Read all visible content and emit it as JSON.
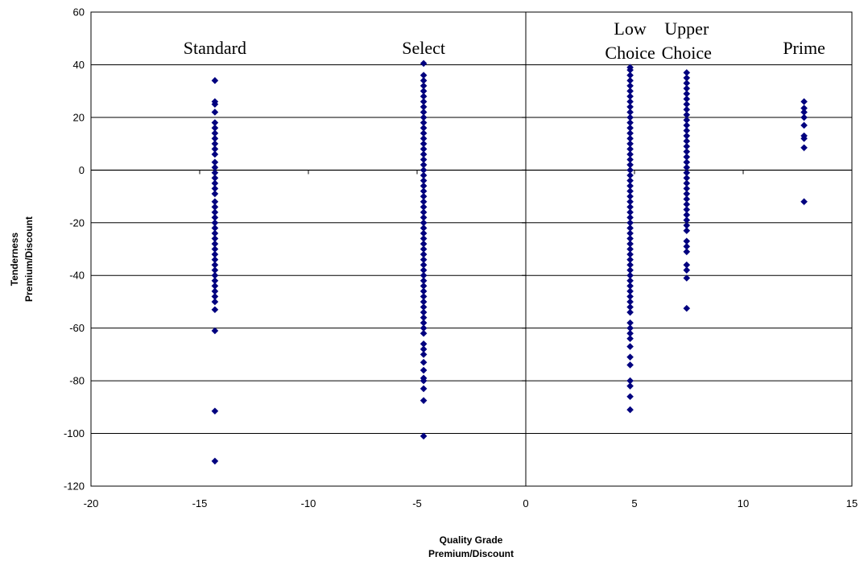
{
  "chart_data": {
    "type": "scatter",
    "title": "",
    "xlabel": [
      "Quality Grade",
      "Premium/Discount"
    ],
    "ylabel": [
      "Tenderness",
      "Premium/Discount"
    ],
    "xlim": [
      -20,
      15
    ],
    "ylim": [
      -120,
      60
    ],
    "x_ticks": [
      "-20",
      "-15",
      "-10",
      "-5",
      "0",
      "5",
      "10",
      "15"
    ],
    "y_ticks": [
      "60",
      "40",
      "20",
      "0",
      "-20",
      "-40",
      "-60",
      "-80",
      "-100",
      "-120"
    ],
    "gridlines": "horizontal",
    "marker_color": "#00007F",
    "marker": "diamond",
    "groups": [
      {
        "label": [
          "Standard"
        ],
        "x": -14.3,
        "y": [
          34,
          26,
          25,
          22,
          18,
          16,
          14,
          12,
          10,
          8,
          6,
          3,
          1,
          -1,
          -3,
          -5,
          -7,
          -9,
          -12,
          -14,
          -16,
          -18,
          -20,
          -22,
          -24,
          -26,
          -28,
          -30,
          -32,
          -34,
          -36,
          -38,
          -40,
          -42,
          -44,
          -46,
          -48,
          -50,
          -53,
          -61,
          -91.5,
          -110.5
        ]
      },
      {
        "label": [
          "Select"
        ],
        "x": -4.7,
        "y": [
          40.5,
          36,
          34,
          32,
          30,
          28,
          26,
          24,
          22,
          20,
          18,
          16,
          14,
          12,
          10,
          8,
          6,
          4,
          2,
          0,
          -2,
          -4,
          -6,
          -8,
          -10,
          -12,
          -14,
          -16,
          -18,
          -20,
          -22,
          -24,
          -26,
          -28,
          -30,
          -32,
          -34,
          -36,
          -38,
          -40,
          -42,
          -44,
          -46,
          -48,
          -50,
          -52,
          -54,
          -56,
          -58,
          -60,
          -62,
          -66,
          -68,
          -70,
          -73,
          -76,
          -79,
          -80,
          -83,
          -87.5,
          -101
        ]
      },
      {
        "label": [
          "Low",
          "Choice"
        ],
        "x": 4.8,
        "y": [
          39,
          38,
          36,
          34,
          32,
          30,
          28,
          26,
          24,
          22,
          20,
          18,
          16,
          14,
          12,
          10,
          8,
          6,
          4,
          2,
          0,
          -2,
          -4,
          -6,
          -8,
          -10,
          -12,
          -14,
          -16,
          -18,
          -20,
          -22,
          -24,
          -26,
          -28,
          -30,
          -32,
          -34,
          -36,
          -38,
          -40,
          -42,
          -44,
          -46,
          -48,
          -50,
          -52,
          -54,
          -58,
          -60,
          -62,
          -64,
          -67,
          -71,
          -74,
          -80,
          -82,
          -86,
          -91
        ]
      },
      {
        "label": [
          "Upper",
          "Choice"
        ],
        "x": 7.4,
        "y": [
          37,
          35,
          33,
          31,
          29,
          27,
          25,
          23,
          21,
          19,
          17,
          15,
          13,
          11,
          9,
          7,
          5,
          3,
          1,
          -1,
          -3,
          -5,
          -7,
          -9,
          -11,
          -13,
          -15,
          -17,
          -19,
          -21,
          -23,
          -27,
          -29,
          -31,
          -36,
          -38,
          -41,
          -52.5
        ]
      },
      {
        "label": [
          "Prime"
        ],
        "x": 12.8,
        "y": [
          26,
          23.5,
          22,
          20,
          17,
          13,
          12,
          8.5,
          -12
        ]
      }
    ]
  }
}
